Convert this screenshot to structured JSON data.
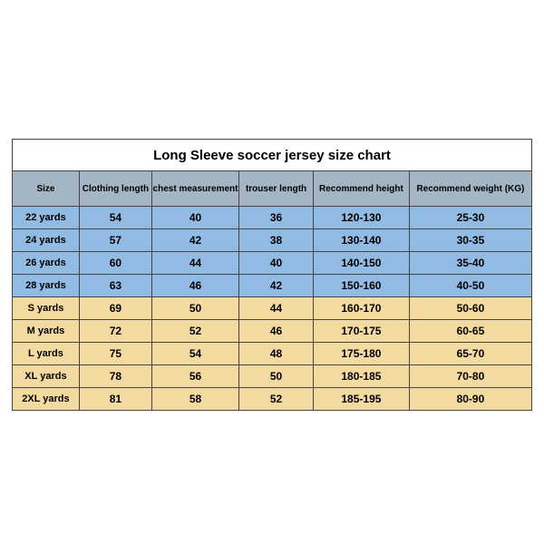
{
  "table": {
    "title": "Long Sleeve soccer jersey size chart",
    "title_fontsize": 15,
    "columns": [
      "Size",
      "Clothing length",
      "chest measurement",
      "trouser length",
      "Recommend height",
      "Recommend weight (KG)"
    ],
    "header_bg": "#a4b5c6",
    "header_fontsize": 10,
    "cell_fontsize": 12,
    "border_color": "#444444",
    "group_colors": {
      "youth": "#91bbe3",
      "adult": "#f3daa0"
    },
    "rows": [
      {
        "size": "22 yards",
        "clothing": "54",
        "chest": "40",
        "trouser": "36",
        "height": "120-130",
        "weight": "25-30",
        "group": "youth"
      },
      {
        "size": "24 yards",
        "clothing": "57",
        "chest": "42",
        "trouser": "38",
        "height": "130-140",
        "weight": "30-35",
        "group": "youth"
      },
      {
        "size": "26 yards",
        "clothing": "60",
        "chest": "44",
        "trouser": "40",
        "height": "140-150",
        "weight": "35-40",
        "group": "youth"
      },
      {
        "size": "28 yards",
        "clothing": "63",
        "chest": "46",
        "trouser": "42",
        "height": "150-160",
        "weight": "40-50",
        "group": "youth"
      },
      {
        "size": "S yards",
        "clothing": "69",
        "chest": "50",
        "trouser": "44",
        "height": "160-170",
        "weight": "50-60",
        "group": "adult"
      },
      {
        "size": "M yards",
        "clothing": "72",
        "chest": "52",
        "trouser": "46",
        "height": "170-175",
        "weight": "60-65",
        "group": "adult"
      },
      {
        "size": "L yards",
        "clothing": "75",
        "chest": "54",
        "trouser": "48",
        "height": "175-180",
        "weight": "65-70",
        "group": "adult"
      },
      {
        "size": "XL yards",
        "clothing": "78",
        "chest": "56",
        "trouser": "50",
        "height": "180-185",
        "weight": "70-80",
        "group": "adult"
      },
      {
        "size": "2XL yards",
        "clothing": "81",
        "chest": "58",
        "trouser": "52",
        "height": "185-195",
        "weight": "80-90",
        "group": "adult"
      }
    ]
  }
}
